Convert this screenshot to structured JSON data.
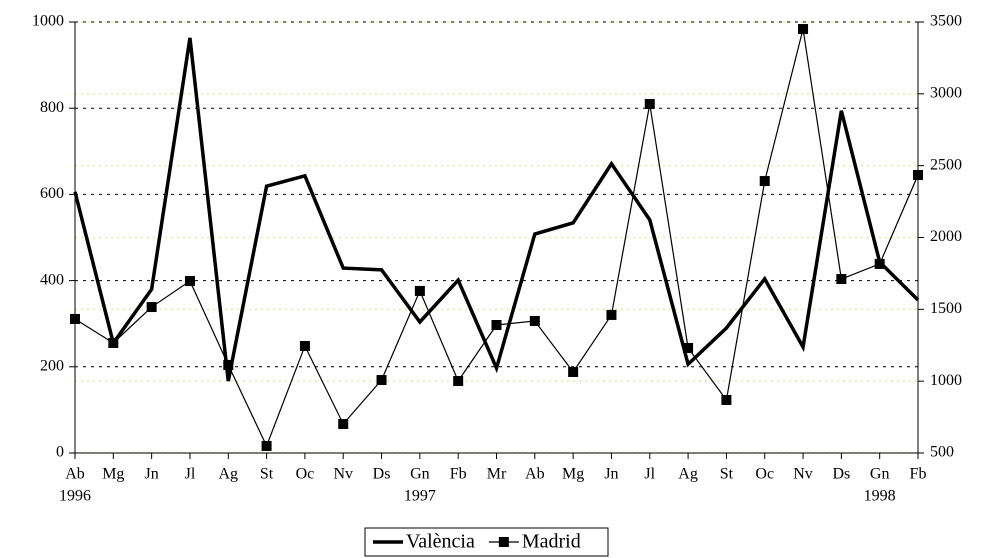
{
  "chart_data": {
    "type": "line",
    "categories": [
      "Ab",
      "Mg",
      "Jn",
      "Jl",
      "Ag",
      "St",
      "Oc",
      "Nv",
      "Ds",
      "Gn",
      "Fb",
      "Mr",
      "Ab",
      "Mg",
      "Jn",
      "Jl",
      "Ag",
      "St",
      "Oc",
      "Nv",
      "Ds",
      "Gn",
      "Fb"
    ],
    "x_group_labels": [
      "1996",
      null,
      null,
      null,
      null,
      null,
      null,
      null,
      null,
      "1997",
      null,
      null,
      null,
      null,
      null,
      null,
      null,
      null,
      null,
      null,
      null,
      "1998",
      null
    ],
    "series": [
      {
        "name": "València",
        "color": "#000000",
        "axis": "y",
        "marker": false,
        "values": [
          606,
          255,
          380,
          963,
          167,
          619,
          643,
          429,
          425,
          304,
          401,
          197,
          508,
          534,
          671,
          541,
          206,
          290,
          404,
          246,
          794,
          443,
          355
        ]
      },
      {
        "name": "Madrid",
        "color": "#000000",
        "axis": "y2",
        "marker": true,
        "values": [
          1433,
          1266,
          1516,
          1697,
          1113,
          549,
          1245,
          702,
          1008,
          1628,
          1001,
          1391,
          1419,
          1064,
          1461,
          2929,
          1231,
          869,
          2393,
          3451,
          1711,
          1816,
          2435
        ]
      }
    ],
    "ylim": [
      0,
      1000
    ],
    "yticks": [
      0,
      200,
      400,
      600,
      800,
      1000
    ],
    "y2lim": [
      500,
      3500
    ],
    "y2ticks": [
      500,
      1000,
      1500,
      2000,
      2500,
      3000,
      3500
    ],
    "grid": true,
    "y2grid": true,
    "legend": "bottom"
  }
}
